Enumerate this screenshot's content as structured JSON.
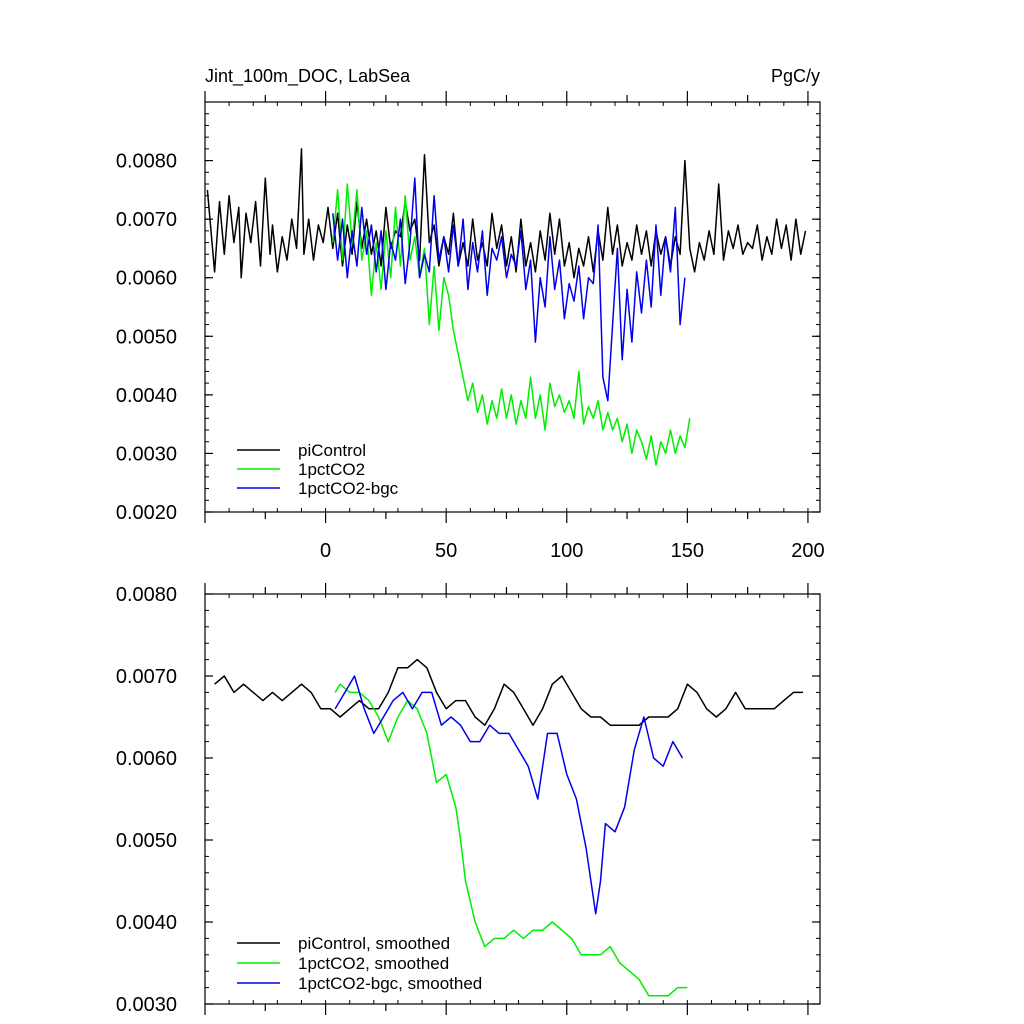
{
  "chart_data": [
    {
      "type": "line",
      "title": "Jint_100m_DOC, LabSea",
      "units": "PgC/y",
      "xlim": [
        -50,
        205
      ],
      "ylim": [
        0.002,
        0.009
      ],
      "xticks": [
        0,
        50,
        100,
        150,
        200
      ],
      "yticks": [
        0.002,
        0.003,
        0.004,
        0.005,
        0.006,
        0.007,
        0.008
      ],
      "ytick_labels": [
        "0.0020",
        "0.0030",
        "0.0040",
        "0.0050",
        "0.0060",
        "0.0070",
        "0.0080"
      ],
      "legend_position": "bottom-left",
      "series": [
        {
          "name": "piControl",
          "color": "#000000",
          "x": [
            -49,
            -46,
            -44,
            -42,
            -40,
            -38,
            -36,
            -35,
            -33,
            -31,
            -29,
            -27,
            -25,
            -23,
            -22,
            -20,
            -18,
            -16,
            -14,
            -12,
            -10,
            -9,
            -7,
            -5,
            -3,
            -1,
            1,
            3,
            5,
            7,
            9,
            11,
            13,
            15,
            17,
            19,
            21,
            23,
            25,
            27,
            29,
            31,
            33,
            35,
            37,
            39,
            41,
            43,
            45,
            47,
            49,
            51,
            53,
            55,
            57,
            59,
            61,
            63,
            65,
            67,
            69,
            71,
            73,
            75,
            77,
            79,
            81,
            83,
            85,
            87,
            89,
            91,
            93,
            95,
            97,
            99,
            101,
            103,
            105,
            107,
            109,
            111,
            113,
            115,
            117,
            119,
            121,
            123,
            125,
            127,
            129,
            131,
            133,
            135,
            137,
            139,
            141,
            143,
            145,
            147,
            149,
            151,
            153,
            155,
            157,
            159,
            161,
            163,
            165,
            167,
            169,
            171,
            173,
            175,
            177,
            179,
            181,
            183,
            185,
            187,
            189,
            191,
            193,
            195,
            197,
            199
          ],
          "values": [
            0.0075,
            0.0061,
            0.0073,
            0.0064,
            0.0074,
            0.0066,
            0.0072,
            0.006,
            0.0071,
            0.0066,
            0.0073,
            0.0062,
            0.0077,
            0.0064,
            0.0069,
            0.0061,
            0.0067,
            0.0063,
            0.007,
            0.0065,
            0.0082,
            0.0064,
            0.007,
            0.0063,
            0.0069,
            0.0066,
            0.0072,
            0.0065,
            0.0071,
            0.0062,
            0.0069,
            0.0064,
            0.0073,
            0.0065,
            0.007,
            0.0064,
            0.0068,
            0.0062,
            0.0072,
            0.0065,
            0.0068,
            0.0067,
            0.0073,
            0.0068,
            0.007,
            0.0063,
            0.0081,
            0.0066,
            0.0069,
            0.0062,
            0.0067,
            0.0064,
            0.0071,
            0.0062,
            0.0066,
            0.0062,
            0.007,
            0.0063,
            0.0066,
            0.0062,
            0.0071,
            0.0065,
            0.0069,
            0.0062,
            0.0067,
            0.0061,
            0.007,
            0.0062,
            0.0066,
            0.0061,
            0.0068,
            0.0063,
            0.0071,
            0.0064,
            0.007,
            0.0062,
            0.0066,
            0.006,
            0.0065,
            0.0062,
            0.0067,
            0.0061,
            0.0068,
            0.0063,
            0.0072,
            0.0064,
            0.0069,
            0.0062,
            0.0066,
            0.0063,
            0.0069,
            0.0064,
            0.0068,
            0.0062,
            0.0068,
            0.0064,
            0.0067,
            0.0062,
            0.0067,
            0.0064,
            0.008,
            0.0065,
            0.0061,
            0.0066,
            0.0063,
            0.0068,
            0.0064,
            0.0076,
            0.0063,
            0.0068,
            0.0065,
            0.0069,
            0.0064,
            0.0066,
            0.0065,
            0.0069,
            0.0063,
            0.0067,
            0.0064,
            0.007,
            0.0065,
            0.0069,
            0.0063,
            0.007,
            0.0064,
            0.0068
          ]
        },
        {
          "name": "1pctCO2",
          "color": "#00ee00",
          "x": [
            3,
            5,
            7,
            9,
            11,
            13,
            15,
            17,
            19,
            21,
            23,
            25,
            27,
            29,
            31,
            33,
            35,
            37,
            39,
            41,
            43,
            45,
            47,
            49,
            51,
            53,
            55,
            57,
            59,
            61,
            63,
            65,
            67,
            69,
            71,
            73,
            75,
            77,
            79,
            81,
            83,
            85,
            87,
            89,
            91,
            93,
            95,
            97,
            99,
            101,
            103,
            105,
            107,
            109,
            111,
            113,
            115,
            117,
            119,
            121,
            123,
            125,
            127,
            129,
            131,
            133,
            135,
            137,
            139,
            141,
            143,
            145,
            147,
            149,
            151
          ],
          "values": [
            0.0066,
            0.0075,
            0.0063,
            0.0076,
            0.0066,
            0.0075,
            0.0063,
            0.0068,
            0.0057,
            0.0066,
            0.0058,
            0.0068,
            0.006,
            0.0072,
            0.0062,
            0.0074,
            0.0063,
            0.0067,
            0.006,
            0.0065,
            0.0052,
            0.0062,
            0.0051,
            0.006,
            0.0057,
            0.0051,
            0.0047,
            0.0043,
            0.0039,
            0.0042,
            0.0037,
            0.004,
            0.0035,
            0.0039,
            0.0036,
            0.0041,
            0.0036,
            0.004,
            0.0035,
            0.0039,
            0.0036,
            0.0043,
            0.0036,
            0.004,
            0.0034,
            0.0042,
            0.0038,
            0.004,
            0.0037,
            0.0039,
            0.0036,
            0.0044,
            0.0035,
            0.0038,
            0.0036,
            0.0039,
            0.0034,
            0.0037,
            0.0034,
            0.0036,
            0.0032,
            0.0035,
            0.003,
            0.0034,
            0.0032,
            0.0029,
            0.0033,
            0.0028,
            0.0032,
            0.003,
            0.0034,
            0.003,
            0.0033,
            0.0031,
            0.0036
          ]
        },
        {
          "name": "1pctCO2-bgc",
          "color": "#0000ee",
          "x": [
            3,
            5,
            7,
            9,
            11,
            13,
            15,
            17,
            19,
            21,
            23,
            25,
            27,
            29,
            31,
            33,
            35,
            37,
            39,
            41,
            43,
            45,
            47,
            49,
            51,
            53,
            55,
            57,
            59,
            61,
            63,
            65,
            67,
            69,
            71,
            73,
            75,
            77,
            79,
            81,
            83,
            85,
            87,
            89,
            91,
            93,
            95,
            97,
            99,
            101,
            103,
            105,
            107,
            109,
            111,
            113,
            115,
            117,
            119,
            121,
            123,
            125,
            127,
            129,
            131,
            133,
            135,
            137,
            139,
            141,
            143,
            145,
            147,
            149
          ],
          "values": [
            0.0071,
            0.0063,
            0.007,
            0.006,
            0.0068,
            0.0062,
            0.0072,
            0.0064,
            0.0069,
            0.0061,
            0.0068,
            0.0058,
            0.0066,
            0.0063,
            0.007,
            0.0059,
            0.0066,
            0.0077,
            0.006,
            0.0064,
            0.0061,
            0.0074,
            0.0063,
            0.0067,
            0.0061,
            0.0069,
            0.0062,
            0.007,
            0.0058,
            0.0066,
            0.0061,
            0.0068,
            0.0057,
            0.0065,
            0.0063,
            0.0067,
            0.006,
            0.0064,
            0.0062,
            0.0068,
            0.0058,
            0.0063,
            0.0049,
            0.006,
            0.0055,
            0.0067,
            0.0058,
            0.0063,
            0.0053,
            0.0059,
            0.0056,
            0.0062,
            0.0053,
            0.006,
            0.0059,
            0.0069,
            0.0043,
            0.0039,
            0.0052,
            0.0065,
            0.0046,
            0.0058,
            0.0049,
            0.0061,
            0.0054,
            0.0063,
            0.0055,
            0.0069,
            0.0057,
            0.0067,
            0.0061,
            0.0072,
            0.0052,
            0.006
          ]
        }
      ]
    },
    {
      "type": "line",
      "xlim": [
        -50,
        205
      ],
      "ylim": [
        0.003,
        0.008
      ],
      "xticks": [
        0,
        50,
        100,
        150,
        200
      ],
      "yticks": [
        0.003,
        0.004,
        0.005,
        0.006,
        0.007,
        0.008
      ],
      "ytick_labels": [
        "0.0030",
        "0.0040",
        "0.0050",
        "0.0060",
        "0.0070",
        "0.0080"
      ],
      "legend_position": "bottom-left",
      "series": [
        {
          "name": "piControl, smoothed",
          "color": "#000000",
          "x": [
            -46,
            -42,
            -38,
            -34,
            -30,
            -26,
            -22,
            -18,
            -14,
            -10,
            -6,
            -2,
            2,
            6,
            10,
            14,
            18,
            22,
            26,
            30,
            34,
            38,
            42,
            46,
            50,
            54,
            58,
            62,
            66,
            70,
            74,
            78,
            82,
            86,
            90,
            94,
            98,
            102,
            106,
            110,
            114,
            118,
            122,
            126,
            130,
            134,
            138,
            142,
            146,
            150,
            154,
            158,
            162,
            166,
            170,
            174,
            178,
            182,
            186,
            190,
            194,
            198
          ],
          "values": [
            0.0069,
            0.007,
            0.0068,
            0.0069,
            0.0068,
            0.0067,
            0.0068,
            0.0067,
            0.0068,
            0.0069,
            0.0068,
            0.0066,
            0.0066,
            0.0065,
            0.0066,
            0.0067,
            0.0066,
            0.0066,
            0.0068,
            0.0071,
            0.0071,
            0.0072,
            0.0071,
            0.0068,
            0.0066,
            0.0067,
            0.0067,
            0.0065,
            0.0064,
            0.0066,
            0.0069,
            0.0068,
            0.0066,
            0.0064,
            0.0066,
            0.0069,
            0.007,
            0.0068,
            0.0066,
            0.0065,
            0.0065,
            0.0064,
            0.0064,
            0.0064,
            0.0064,
            0.0065,
            0.0065,
            0.0065,
            0.0066,
            0.0069,
            0.0068,
            0.0066,
            0.0065,
            0.0066,
            0.0068,
            0.0066,
            0.0066,
            0.0066,
            0.0066,
            0.0067,
            0.0068,
            0.0068
          ]
        },
        {
          "name": "1pctCO2, smoothed",
          "color": "#00ee00",
          "x": [
            4,
            6,
            10,
            14,
            18,
            22,
            26,
            30,
            34,
            38,
            42,
            46,
            50,
            54,
            56,
            58,
            62,
            66,
            70,
            74,
            78,
            82,
            86,
            90,
            94,
            98,
            102,
            106,
            110,
            114,
            118,
            122,
            126,
            130,
            134,
            138,
            142,
            146,
            150
          ],
          "values": [
            0.0068,
            0.0069,
            0.0068,
            0.0068,
            0.0067,
            0.0065,
            0.0062,
            0.0065,
            0.0067,
            0.0066,
            0.0063,
            0.0057,
            0.0058,
            0.0054,
            0.005,
            0.0045,
            0.004,
            0.0037,
            0.0038,
            0.0038,
            0.0039,
            0.0038,
            0.0039,
            0.0039,
            0.004,
            0.0039,
            0.0038,
            0.0036,
            0.0036,
            0.0036,
            0.0037,
            0.0035,
            0.0034,
            0.0033,
            0.0031,
            0.0031,
            0.0031,
            0.0032,
            0.0032
          ]
        },
        {
          "name": "1pctCO2-bgc, smoothed",
          "color": "#0000ee",
          "x": [
            4,
            8,
            12,
            16,
            20,
            24,
            28,
            32,
            36,
            40,
            44,
            48,
            52,
            56,
            60,
            64,
            68,
            72,
            76,
            80,
            84,
            88,
            92,
            96,
            100,
            104,
            108,
            112,
            114,
            116,
            120,
            124,
            128,
            132,
            136,
            140,
            144,
            148
          ],
          "values": [
            0.0066,
            0.0068,
            0.007,
            0.0066,
            0.0063,
            0.0065,
            0.0067,
            0.0068,
            0.0066,
            0.0068,
            0.0068,
            0.0064,
            0.0065,
            0.0064,
            0.0062,
            0.0062,
            0.0064,
            0.0063,
            0.0063,
            0.0061,
            0.0059,
            0.0055,
            0.0063,
            0.0063,
            0.0058,
            0.0055,
            0.0049,
            0.0041,
            0.0045,
            0.0052,
            0.0051,
            0.0054,
            0.0061,
            0.0065,
            0.006,
            0.0059,
            0.0062,
            0.006
          ]
        }
      ]
    }
  ]
}
